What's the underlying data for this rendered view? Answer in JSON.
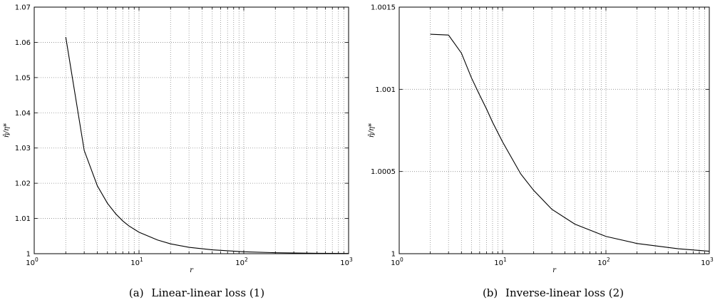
{
  "chart_data": [
    {
      "type": "line",
      "caption_label": "(a)",
      "caption": "Linear-linear loss (1)",
      "xlabel": "r",
      "ylabel": "η̄/η*",
      "xscale": "log",
      "xlim": [
        1,
        1000
      ],
      "ylim": [
        1,
        1.07
      ],
      "grid": true,
      "xticks": [
        1,
        10,
        100,
        1000
      ],
      "xtick_labels": [
        {
          "base": "10",
          "exp": "0"
        },
        {
          "base": "10",
          "exp": "1"
        },
        {
          "base": "10",
          "exp": "2"
        },
        {
          "base": "10",
          "exp": "3"
        }
      ],
      "yticks": [
        1,
        1.01,
        1.02,
        1.03,
        1.04,
        1.05,
        1.06,
        1.07
      ],
      "ytick_labels": [
        "1",
        "1.01",
        "1.02",
        "1.03",
        "1.04",
        "1.05",
        "1.06",
        "1.07"
      ],
      "series": [
        {
          "x": [
            2,
            3,
            4,
            5,
            6,
            7,
            8,
            10,
            15,
            20,
            30,
            50,
            100,
            200,
            500,
            1000
          ],
          "y": [
            1.0615,
            1.0293,
            1.0193,
            1.0143,
            1.0113,
            1.0093,
            1.0079,
            1.0061,
            1.0039,
            1.0028,
            1.0018,
            1.0011,
            1.00055,
            1.00028,
            1.00011,
            1.00006
          ]
        }
      ]
    },
    {
      "type": "line",
      "caption_label": "(b)",
      "caption": "Inverse-linear loss (2)",
      "xlabel": "r",
      "ylabel": "η̄/η*",
      "xscale": "log",
      "xlim": [
        1,
        1000
      ],
      "ylim": [
        1,
        1.0015
      ],
      "grid": true,
      "xticks": [
        1,
        10,
        100,
        1000
      ],
      "xtick_labels": [
        {
          "base": "10",
          "exp": "0"
        },
        {
          "base": "10",
          "exp": "1"
        },
        {
          "base": "10",
          "exp": "2"
        },
        {
          "base": "10",
          "exp": "3"
        }
      ],
      "yticks": [
        1,
        1.0005,
        1.001,
        1.0015
      ],
      "ytick_labels": [
        "1",
        "1.0005",
        "1.001",
        "1.0015"
      ],
      "series": [
        {
          "x": [
            2,
            3,
            4,
            5,
            6,
            7,
            8,
            10,
            15,
            20,
            30,
            50,
            100,
            200,
            500,
            1000
          ],
          "y": [
            1.001335,
            1.00133,
            1.00122,
            1.00107,
            1.000965,
            1.00088,
            1.0008,
            1.00068,
            1.000485,
            1.000385,
            1.00027,
            1.00018,
            1.000105,
            1.000062,
            1.00003,
            1.000015
          ]
        }
      ]
    }
  ]
}
